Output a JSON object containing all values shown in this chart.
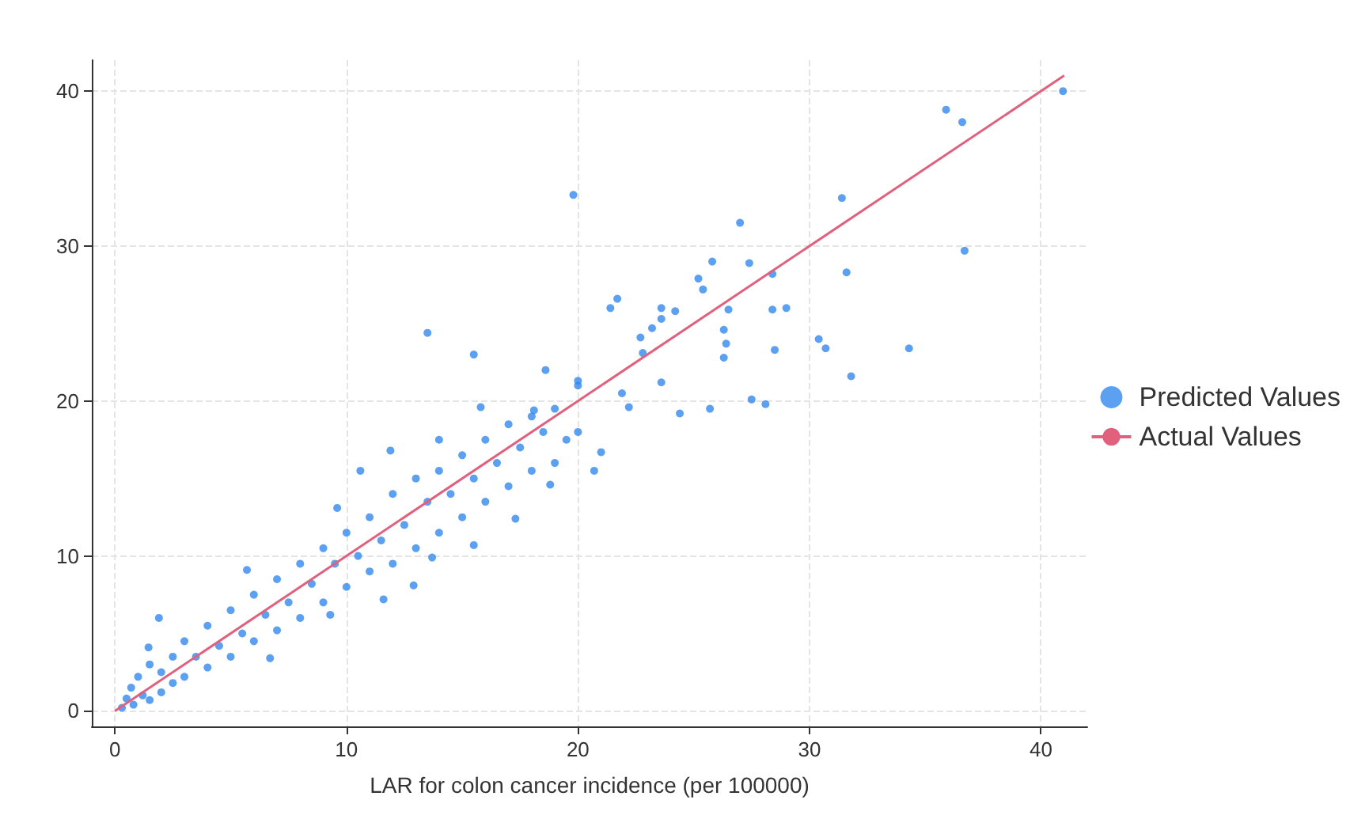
{
  "chart_data": {
    "type": "scatter",
    "xlabel": "LAR for colon cancer incidence (per 100000)",
    "xlim": [
      -1,
      42
    ],
    "ylim": [
      -1,
      42
    ],
    "xticks": [
      0,
      10,
      20,
      30,
      40
    ],
    "yticks": [
      0,
      10,
      20,
      30,
      40
    ],
    "grid": true,
    "legend": "right",
    "marker": "circle",
    "series": [
      {
        "name": "Predicted Values",
        "color": "#3388ee",
        "x": [
          40.95,
          35.9,
          36.6,
          31.4,
          36.7,
          27.0,
          25.8,
          27.4,
          28.4,
          31.6,
          25.2,
          25.4,
          21.7,
          21.4,
          23.6,
          24.2,
          26.5,
          28.4,
          29.0,
          23.6,
          23.2,
          22.7,
          26.3,
          26.4,
          26.3,
          22.8,
          28.5,
          30.4,
          30.7,
          34.3,
          31.8,
          23.6,
          21.9,
          22.2,
          24.4,
          25.7,
          27.5,
          28.1,
          19.8,
          13.5,
          15.5,
          18.6,
          20.0,
          15.8,
          18.1,
          11.9,
          14.0,
          21.0,
          20.7,
          10.6,
          9.6,
          15.5,
          13.7,
          12.9,
          11.6,
          5.7,
          1.9,
          1.45,
          6.7,
          9.3,
          18.8,
          17.3,
          0.3,
          0.5,
          0.7,
          0.8,
          1,
          1.2,
          1.5,
          1.5,
          2,
          2,
          2.5,
          2.5,
          3,
          3,
          3.5,
          4,
          4,
          4.5,
          5,
          5,
          5.5,
          6,
          6,
          6.5,
          7,
          7,
          7.5,
          8,
          8,
          8.5,
          9,
          9,
          9.5,
          10,
          10,
          10.5,
          11,
          11,
          11.5,
          12,
          12,
          12.5,
          13,
          13,
          13.5,
          14,
          14,
          14.5,
          15,
          15,
          15.5,
          16,
          16,
          16.5,
          17,
          17,
          17.5,
          18,
          18,
          18.5,
          19,
          19,
          19.5,
          20,
          20
        ],
        "values": [
          40.0,
          38.8,
          38.0,
          33.1,
          29.7,
          31.5,
          29.0,
          28.9,
          28.2,
          28.3,
          27.9,
          27.2,
          26.6,
          26.0,
          26.0,
          25.8,
          25.9,
          25.9,
          26.0,
          25.3,
          24.7,
          24.1,
          24.6,
          23.7,
          22.8,
          23.1,
          23.3,
          24.0,
          23.4,
          23.4,
          21.6,
          21.2,
          20.5,
          19.6,
          19.2,
          19.5,
          20.1,
          19.8,
          33.3,
          24.4,
          23.0,
          22.0,
          21.3,
          19.6,
          19.4,
          16.8,
          17.5,
          16.7,
          15.5,
          15.5,
          13.1,
          10.7,
          9.9,
          8.1,
          7.2,
          9.1,
          6.0,
          4.1,
          3.4,
          6.2,
          14.6,
          12.4,
          0.2,
          0.8,
          1.5,
          0.4,
          2.2,
          1.0,
          0.7,
          3,
          2.5,
          1.2,
          3.5,
          1.8,
          4.5,
          2.2,
          3.5,
          5.5,
          2.8,
          4.2,
          6.5,
          3.5,
          5,
          7.5,
          4.5,
          6.2,
          8.5,
          5.2,
          7,
          9.5,
          6,
          8.2,
          10.5,
          7,
          9.5,
          11.5,
          8,
          10,
          12.5,
          9,
          11,
          14,
          9.5,
          12,
          15,
          10.5,
          13.5,
          15.5,
          11.5,
          14,
          16.5,
          12.5,
          15,
          17.5,
          13.5,
          16,
          18.5,
          14.5,
          17,
          19,
          15.5,
          18,
          19.5,
          16,
          17.5,
          21,
          18
        ]
      },
      {
        "name": "Actual Values",
        "type": "line",
        "color": "#e0607e",
        "x": [
          0,
          41
        ],
        "values": [
          0,
          41
        ],
        "marker": "none",
        "line_style": "solid"
      }
    ]
  }
}
